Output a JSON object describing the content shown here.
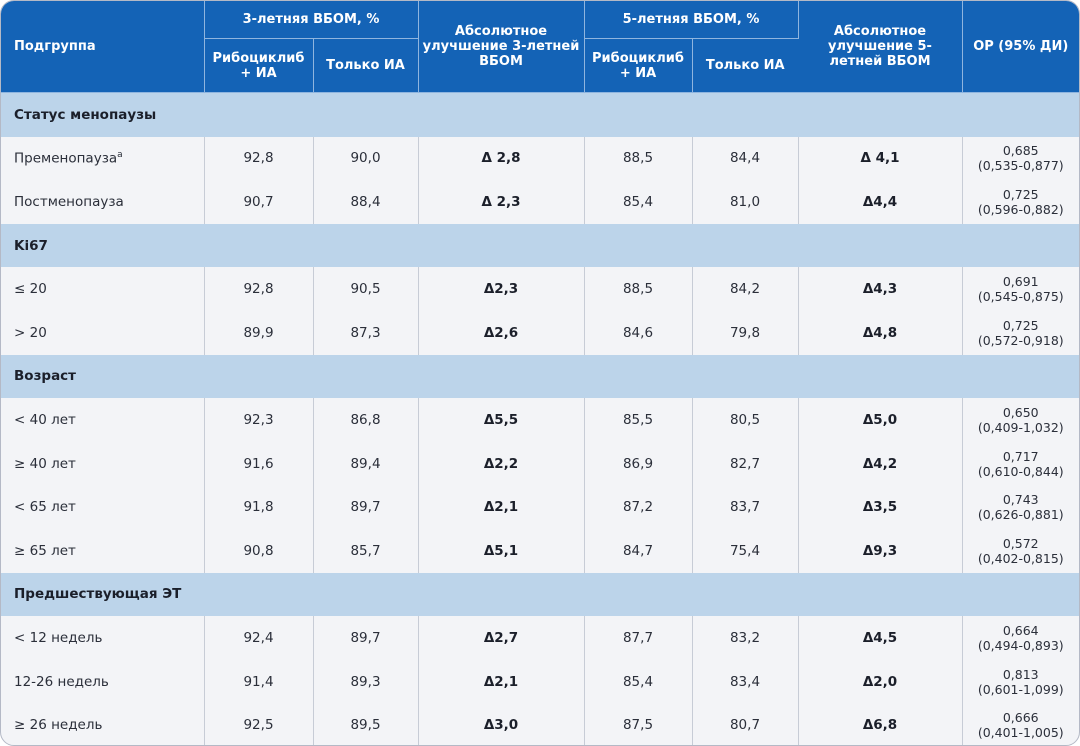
{
  "header": {
    "subgroup": "Подгруппа",
    "ibom3": "3-летняя ВБОМ, %",
    "ibom5": "5-летняя ВБОМ, %",
    "abs3": "Абсолютное улучшение 3-летней ВБОМ",
    "abs5": "Абсолютное улучшение 5-летней ВБОМ",
    "hr": "ОР (95% ДИ)",
    "ribo": "Рибоциклиб + ИА",
    "ia": "Только ИА"
  },
  "sections": [
    {
      "title": "Статус менопаузы",
      "rows": [
        {
          "label": "Пременопауза",
          "sup": "a",
          "r3": "92,8",
          "i3": "90,0",
          "d3": "Δ 2,8",
          "r5": "88,5",
          "i5": "84,4",
          "d5": "Δ 4,1",
          "hr": "0,685",
          "ci": "(0,535-0,877)"
        },
        {
          "label": "Постменопауза",
          "sup": "",
          "r3": "90,7",
          "i3": "88,4",
          "d3": "Δ 2,3",
          "r5": "85,4",
          "i5": "81,0",
          "d5": "Δ4,4",
          "hr": "0,725",
          "ci": "(0,596-0,882)"
        }
      ]
    },
    {
      "title": "Ki67",
      "rows": [
        {
          "label": "≤ 20",
          "sup": "",
          "r3": "92,8",
          "i3": "90,5",
          "d3": "Δ2,3",
          "r5": "88,5",
          "i5": "84,2",
          "d5": "Δ4,3",
          "hr": "0,691",
          "ci": "(0,545-0,875)"
        },
        {
          "label": "> 20",
          "sup": "",
          "r3": "89,9",
          "i3": "87,3",
          "d3": "Δ2,6",
          "r5": "84,6",
          "i5": "79,8",
          "d5": "Δ4,8",
          "hr": "0,725",
          "ci": "(0,572-0,918)"
        }
      ]
    },
    {
      "title": "Возраст",
      "rows": [
        {
          "label": "< 40 лет",
          "sup": "",
          "r3": "92,3",
          "i3": "86,8",
          "d3": "Δ5,5",
          "r5": "85,5",
          "i5": "80,5",
          "d5": "Δ5,0",
          "hr": "0,650",
          "ci": "(0,409-1,032)"
        },
        {
          "label": "≥ 40 лет",
          "sup": "",
          "r3": "91,6",
          "i3": "89,4",
          "d3": "Δ2,2",
          "r5": "86,9",
          "i5": "82,7",
          "d5": "Δ4,2",
          "hr": "0,717",
          "ci": "(0,610-0,844)"
        },
        {
          "label": "< 65 лет",
          "sup": "",
          "r3": "91,8",
          "i3": "89,7",
          "d3": "Δ2,1",
          "r5": "87,2",
          "i5": "83,7",
          "d5": "Δ3,5",
          "hr": "0,743",
          "ci": "(0,626-0,881)"
        },
        {
          "label": "≥ 65 лет",
          "sup": "",
          "r3": "90,8",
          "i3": "85,7",
          "d3": "Δ5,1",
          "r5": "84,7",
          "i5": "75,4",
          "d5": "Δ9,3",
          "hr": "0,572",
          "ci": "(0,402-0,815)"
        }
      ]
    },
    {
      "title": "Предшествующая ЭТ",
      "rows": [
        {
          "label": "< 12 недель",
          "sup": "",
          "r3": "92,4",
          "i3": "89,7",
          "d3": "Δ2,7",
          "r5": "87,7",
          "i5": "83,2",
          "d5": "Δ4,5",
          "hr": "0,664",
          "ci": "(0,494-0,893)"
        },
        {
          "label": "12-26 недель",
          "sup": "",
          "r3": "91,4",
          "i3": "89,3",
          "d3": "Δ2,1",
          "r5": "85,4",
          "i5": "83,4",
          "d5": "Δ2,0",
          "hr": "0,813",
          "ci": "(0,601-1,099)"
        },
        {
          "label": "≥ 26 недель",
          "sup": "",
          "r3": "92,5",
          "i3": "89,5",
          "d3": "Δ3,0",
          "r5": "87,5",
          "i5": "80,7",
          "d5": "Δ6,8",
          "hr": "0,666",
          "ci": "(0,401-1,005)"
        }
      ]
    }
  ]
}
